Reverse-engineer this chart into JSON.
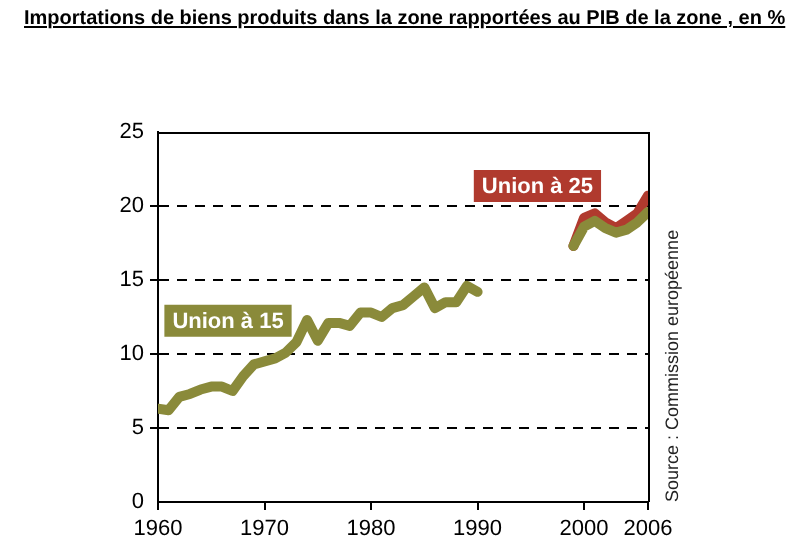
{
  "chart_data": {
    "type": "line",
    "title": "Importations de biens produits dans la zone rapportées au PIB de la zone , en %",
    "series": [
      {
        "name": "Union à 15",
        "color": "#8a8a3a",
        "x": [
          1960,
          1961,
          1962,
          1963,
          1964,
          1965,
          1966,
          1967,
          1968,
          1969,
          1970,
          1971,
          1972,
          1973,
          1974,
          1975,
          1976,
          1977,
          1978,
          1979,
          1980,
          1981,
          1982,
          1983,
          1984,
          1985,
          1986,
          1987,
          1988,
          1989,
          1990,
          1995,
          1999,
          2000,
          2001,
          2002,
          2003,
          2004,
          2005,
          2006
        ],
        "values": [
          6.3,
          6.2,
          7.1,
          7.3,
          7.6,
          7.8,
          7.8,
          7.5,
          8.5,
          9.3,
          9.5,
          9.7,
          10.1,
          10.8,
          12.3,
          10.9,
          12.1,
          12.1,
          11.9,
          12.8,
          12.8,
          12.5,
          13.1,
          13.3,
          13.9,
          14.5,
          13.1,
          13.5,
          13.5,
          14.6,
          14.2,
          null,
          17.3,
          18.6,
          19.0,
          18.5,
          18.2,
          18.4,
          18.9,
          19.6
        ]
      },
      {
        "name": "Union à 25",
        "color": "#b03a2e",
        "x": [
          1999,
          2000,
          2001,
          2002,
          2003,
          2004,
          2005,
          2006
        ],
        "values": [
          17.3,
          19.2,
          19.5,
          18.9,
          18.5,
          19.0,
          19.5,
          20.7
        ]
      }
    ],
    "xlim": [
      1960,
      2006
    ],
    "xticks": [
      1960,
      1970,
      1980,
      1990,
      2000,
      2006
    ],
    "ylim": [
      0,
      25
    ],
    "yticks": [
      0,
      5,
      10,
      15,
      20,
      25
    ],
    "grid": "y",
    "legend": false,
    "marker": "none",
    "line_style": "solid",
    "annotations": [
      "Source : Commission européenne"
    ]
  }
}
